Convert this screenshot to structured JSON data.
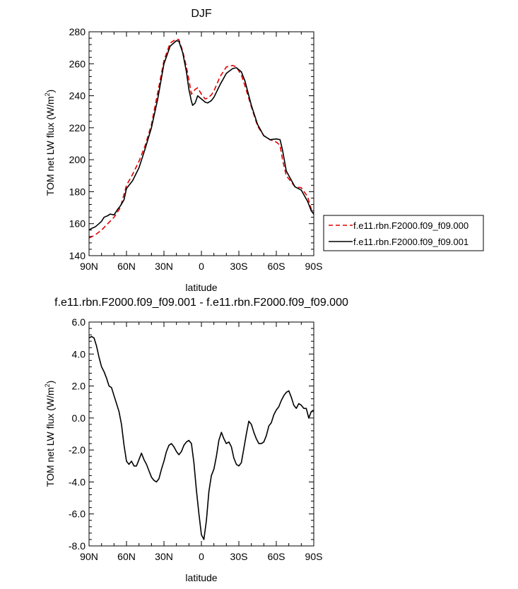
{
  "chart_data": [
    {
      "type": "line",
      "title": "DJF",
      "xlabel": "latitude",
      "ylabel": "TOM net LW flux (W/m",
      "ylabel_sup": "2",
      "ylabel_close": ")",
      "xlim": [
        90,
        -90
      ],
      "ylim": [
        140,
        280
      ],
      "xticks": [
        90,
        60,
        30,
        0,
        -30,
        -60,
        -90
      ],
      "xtick_labels": [
        "90N",
        "60N",
        "30N",
        "0",
        "30S",
        "60S",
        "90S"
      ],
      "yticks": [
        140,
        160,
        180,
        200,
        220,
        240,
        260,
        280
      ],
      "ytick_labels": [
        "140",
        "160",
        "180",
        "200",
        "220",
        "240",
        "260",
        "280"
      ],
      "grid": false,
      "legend_position": "right",
      "series": [
        {
          "name": "f.e11.rbn.F2000.f09_f09.000",
          "color": "#e00000",
          "dash": "dashed",
          "x": [
            90,
            85,
            80,
            75,
            70,
            65,
            60,
            55,
            50,
            45,
            40,
            35,
            30,
            25,
            20,
            18,
            15,
            12,
            10,
            8,
            5,
            3,
            0,
            -3,
            -5,
            -8,
            -10,
            -15,
            -20,
            -25,
            -28,
            -32,
            -35,
            -40,
            -45,
            -50,
            -55,
            -60,
            -63,
            -65,
            -68,
            -70,
            -75,
            -80,
            -85,
            -88,
            -90
          ],
          "y": [
            151,
            153,
            156,
            160,
            164,
            170,
            184,
            191,
            199,
            209,
            222,
            242,
            262,
            273,
            275.5,
            275,
            268,
            258,
            250,
            241,
            244,
            245,
            241,
            238,
            238.5,
            240.5,
            243,
            252,
            258,
            259,
            258,
            253,
            246,
            233,
            221,
            215,
            212.5,
            211,
            209,
            200,
            190,
            188,
            183,
            182.5,
            177,
            169,
            166
          ]
        },
        {
          "name": "f.e11.rbn.F2000.f09_f09.001",
          "color": "#000000",
          "dash": "solid",
          "x": [
            90,
            88,
            85,
            82,
            80,
            78,
            75,
            73,
            70,
            67,
            65,
            62,
            60,
            57,
            55,
            50,
            45,
            40,
            35,
            30,
            25,
            20,
            18,
            15,
            12,
            10,
            8,
            7,
            5,
            3,
            0,
            -3,
            -5,
            -8,
            -10,
            -15,
            -20,
            -25,
            -28,
            -32,
            -35,
            -40,
            -45,
            -50,
            -55,
            -60,
            -63,
            -65,
            -68,
            -70,
            -75,
            -80,
            -85,
            -88,
            -90
          ],
          "y": [
            156,
            157,
            158,
            160,
            161.5,
            164,
            165,
            166,
            165.5,
            169,
            171,
            175,
            182,
            185,
            187,
            195,
            207,
            220,
            238,
            260,
            271,
            274.5,
            274,
            267,
            255,
            244,
            236.5,
            234,
            235.5,
            240,
            238,
            236,
            235.5,
            237,
            239,
            247,
            254,
            257,
            257.5,
            255,
            249,
            234,
            222,
            215,
            212.5,
            213,
            212.5,
            206,
            193,
            190,
            183,
            181,
            174,
            168,
            166
          ]
        }
      ]
    },
    {
      "type": "line",
      "title": "f.e11.rbn.F2000.f09_f09.001 - f.e11.rbn.F2000.f09_f09.000",
      "xlabel": "latitude",
      "ylabel": "TOM net LW flux (W/m",
      "ylabel_sup": "2",
      "ylabel_close": ")",
      "xlim": [
        90,
        -90
      ],
      "ylim": [
        -8,
        6
      ],
      "xticks": [
        90,
        60,
        30,
        0,
        -30,
        -60,
        -90
      ],
      "xtick_labels": [
        "90N",
        "60N",
        "30N",
        "0",
        "30S",
        "60S",
        "90S"
      ],
      "yticks": [
        -8,
        -6,
        -4,
        -2,
        0,
        2,
        4,
        6
      ],
      "ytick_labels": [
        "-8.0",
        "-6.0",
        "-4.0",
        "-2.0",
        "0.0",
        "2.0",
        "4.0",
        "6.0"
      ],
      "grid": false,
      "series": [
        {
          "color": "#000000",
          "dash": "solid",
          "x": [
            90,
            88,
            86,
            84,
            82,
            80,
            78,
            76,
            74,
            72,
            70,
            68,
            66,
            64,
            62,
            60,
            58,
            56,
            54,
            52,
            50,
            48,
            46,
            44,
            42,
            40,
            38,
            36,
            34,
            32,
            30,
            28,
            26,
            24,
            22,
            20,
            18,
            16,
            14,
            12,
            10,
            8,
            6,
            4,
            2,
            0,
            -2,
            -4,
            -6,
            -8,
            -10,
            -12,
            -14,
            -16,
            -18,
            -20,
            -22,
            -24,
            -26,
            -28,
            -30,
            -32,
            -34,
            -36,
            -38,
            -40,
            -42,
            -44,
            -46,
            -48,
            -50,
            -52,
            -54,
            -56,
            -58,
            -60,
            -62,
            -64,
            -66,
            -68,
            -70,
            -72,
            -74,
            -76,
            -78,
            -80,
            -82,
            -84,
            -86,
            -88,
            -90
          ],
          "y": [
            5.0,
            5.1,
            5.0,
            4.5,
            3.8,
            3.2,
            2.9,
            2.5,
            2.0,
            1.9,
            1.4,
            0.9,
            0.4,
            -0.4,
            -1.7,
            -2.7,
            -2.9,
            -2.7,
            -3.0,
            -3.0,
            -2.6,
            -2.2,
            -2.6,
            -2.9,
            -3.3,
            -3.7,
            -3.9,
            -4.0,
            -3.8,
            -3.2,
            -2.7,
            -2.1,
            -1.7,
            -1.6,
            -1.8,
            -2.1,
            -2.3,
            -2.1,
            -1.7,
            -1.5,
            -1.4,
            -1.6,
            -2.8,
            -4.5,
            -6.0,
            -7.3,
            -7.6,
            -6.4,
            -4.6,
            -3.6,
            -3.2,
            -2.4,
            -1.4,
            -0.9,
            -1.3,
            -1.6,
            -1.5,
            -1.8,
            -2.5,
            -2.9,
            -3.0,
            -2.8,
            -1.9,
            -1.0,
            -0.2,
            -0.4,
            -0.9,
            -1.3,
            -1.6,
            -1.6,
            -1.5,
            -1.1,
            -0.5,
            -0.3,
            0.2,
            0.5,
            0.7,
            1.1,
            1.4,
            1.6,
            1.7,
            1.3,
            0.8,
            0.6,
            0.9,
            0.8,
            0.6,
            0.6,
            0.0,
            0.4,
            0.5
          ]
        }
      ]
    }
  ]
}
